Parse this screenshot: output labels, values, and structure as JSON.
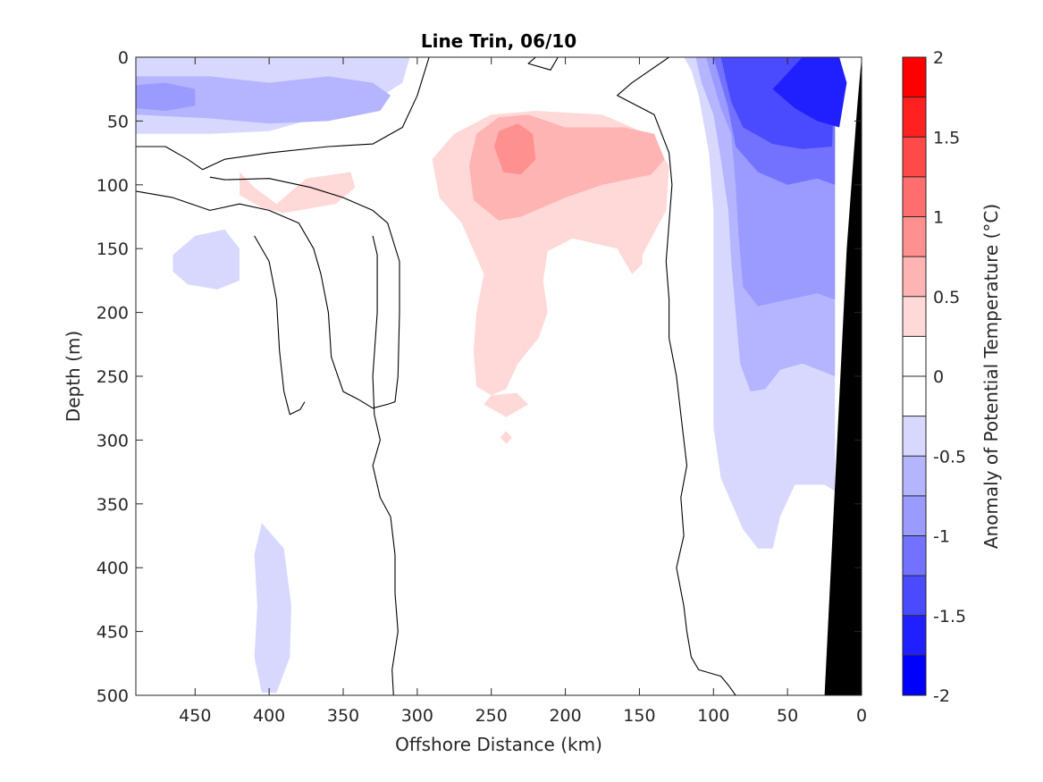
{
  "chart_data": {
    "type": "contour",
    "title": "Line Trin, 06/10",
    "xlabel": "Offshore Distance (km)",
    "ylabel": "Depth (m)",
    "colorbar_label": "Anomaly of Potential Temperature (°C)",
    "xlim": [
      490,
      0
    ],
    "ylim": [
      0,
      500
    ],
    "x_reversed": true,
    "y_reversed": true,
    "x_ticks": [
      450,
      400,
      350,
      300,
      250,
      200,
      150,
      100,
      50,
      0
    ],
    "y_ticks": [
      0,
      50,
      100,
      150,
      200,
      250,
      300,
      350,
      400,
      450,
      500
    ],
    "colorbar_ticks": [
      2,
      1.5,
      1,
      0.5,
      0,
      -0.5,
      -1,
      -1.5,
      -2
    ],
    "colorbar_tick_labels": [
      "2",
      "1.5",
      "1",
      "0.5",
      "0",
      "-0.5",
      "-1",
      "-1.5",
      "-2"
    ],
    "colorbar_range": [
      -2,
      2
    ],
    "contour_step": 0.25,
    "colormap": [
      "#0000ff",
      "#2020ff",
      "#4a4aff",
      "#7272ff",
      "#9a9aff",
      "#b4b4ff",
      "#d8d8ff",
      "#ffffff",
      "#ffffff",
      "#ffd8d8",
      "#ffb4b4",
      "#ff9090",
      "#ff6e6e",
      "#ff4a4a",
      "#ff2020",
      "#ff0000"
    ],
    "seafloor_color": "#000000",
    "zero_contour_color": "#000000",
    "regions": [
      {
        "level": -0.25,
        "color": "#d8d8ff",
        "points": [
          [
            490,
            0
          ],
          [
            305,
            0
          ],
          [
            310,
            20
          ],
          [
            330,
            35
          ],
          [
            360,
            45
          ],
          [
            400,
            58
          ],
          [
            440,
            60
          ],
          [
            490,
            60
          ]
        ]
      },
      {
        "level": -0.5,
        "color": "#b4b4ff",
        "points": [
          [
            490,
            15
          ],
          [
            440,
            15
          ],
          [
            400,
            20
          ],
          [
            360,
            15
          ],
          [
            330,
            20
          ],
          [
            318,
            30
          ],
          [
            325,
            42
          ],
          [
            360,
            50
          ],
          [
            400,
            52
          ],
          [
            440,
            48
          ],
          [
            490,
            45
          ]
        ]
      },
      {
        "level": -0.75,
        "color": "#9a9aff",
        "points": [
          [
            470,
            20
          ],
          [
            450,
            25
          ],
          [
            450,
            38
          ],
          [
            470,
            42
          ],
          [
            490,
            40
          ],
          [
            490,
            22
          ]
        ]
      },
      {
        "level": -0.25,
        "color": "#d8d8ff",
        "points": [
          [
            465,
            155
          ],
          [
            450,
            140
          ],
          [
            430,
            135
          ],
          [
            420,
            150
          ],
          [
            420,
            175
          ],
          [
            435,
            182
          ],
          [
            455,
            178
          ],
          [
            465,
            168
          ]
        ]
      },
      {
        "level": -0.25,
        "color": "#d8d8ff",
        "points": [
          [
            405,
            365
          ],
          [
            390,
            385
          ],
          [
            385,
            430
          ],
          [
            386,
            470
          ],
          [
            395,
            498
          ],
          [
            405,
            498
          ],
          [
            410,
            470
          ],
          [
            408,
            430
          ],
          [
            410,
            390
          ]
        ]
      },
      {
        "level": 0.25,
        "color": "#ffd8d8",
        "points": [
          [
            420,
            90
          ],
          [
            410,
            102
          ],
          [
            395,
            115
          ],
          [
            385,
            105
          ],
          [
            375,
            95
          ],
          [
            345,
            90
          ],
          [
            342,
            102
          ],
          [
            355,
            115
          ],
          [
            370,
            118
          ],
          [
            390,
            122
          ],
          [
            405,
            118
          ],
          [
            420,
            108
          ]
        ]
      },
      {
        "level": 0.25,
        "color": "#ffd8d8",
        "points": [
          [
            290,
            80
          ],
          [
            275,
            60
          ],
          [
            250,
            45
          ],
          [
            220,
            42
          ],
          [
            175,
            45
          ],
          [
            145,
            60
          ],
          [
            130,
            85
          ],
          [
            132,
            120
          ],
          [
            148,
            155
          ],
          [
            148,
            162
          ],
          [
            155,
            170
          ],
          [
            165,
            150
          ],
          [
            195,
            142
          ],
          [
            212,
            152
          ],
          [
            215,
            175
          ],
          [
            212,
            200
          ],
          [
            218,
            220
          ],
          [
            232,
            240
          ],
          [
            240,
            260
          ],
          [
            250,
            265
          ],
          [
            260,
            258
          ],
          [
            262,
            230
          ],
          [
            260,
            200
          ],
          [
            255,
            170
          ],
          [
            270,
            130
          ],
          [
            285,
            110
          ]
        ]
      },
      {
        "level": 0.25,
        "color": "#ffd8d8",
        "points": [
          [
            250,
            265
          ],
          [
            255,
            272
          ],
          [
            240,
            282
          ],
          [
            225,
            272
          ],
          [
            233,
            263
          ]
        ]
      },
      {
        "level": 0.25,
        "color": "#ffd8d8",
        "points": [
          [
            240,
            293
          ],
          [
            236,
            298
          ],
          [
            240,
            303
          ],
          [
            244,
            298
          ]
        ]
      },
      {
        "level": 0.5,
        "color": "#ffb4b4",
        "points": [
          [
            260,
            60
          ],
          [
            245,
            47
          ],
          [
            225,
            45
          ],
          [
            200,
            55
          ],
          [
            160,
            55
          ],
          [
            140,
            60
          ],
          [
            133,
            80
          ],
          [
            142,
            92
          ],
          [
            175,
            100
          ],
          [
            200,
            110
          ],
          [
            230,
            125
          ],
          [
            245,
            128
          ],
          [
            262,
            112
          ],
          [
            265,
            85
          ]
        ]
      },
      {
        "level": 0.75,
        "color": "#ff9090",
        "points": [
          [
            245,
            58
          ],
          [
            232,
            52
          ],
          [
            222,
            60
          ],
          [
            220,
            80
          ],
          [
            230,
            92
          ],
          [
            242,
            90
          ],
          [
            248,
            70
          ]
        ]
      },
      {
        "level": -0.25,
        "color": "#d8d8ff",
        "points": [
          [
            120,
            0
          ],
          [
            115,
            10
          ],
          [
            110,
            30
          ],
          [
            103,
            75
          ],
          [
            100,
            120
          ],
          [
            100,
            180
          ],
          [
            100,
            250
          ],
          [
            100,
            290
          ],
          [
            95,
            330
          ],
          [
            80,
            370
          ],
          [
            70,
            385
          ],
          [
            60,
            385
          ],
          [
            55,
            360
          ],
          [
            45,
            335
          ],
          [
            25,
            335
          ],
          [
            18,
            340
          ],
          [
            18,
            0
          ]
        ]
      },
      {
        "level": -0.5,
        "color": "#b4b4ff",
        "points": [
          [
            112,
            0
          ],
          [
            108,
            20
          ],
          [
            100,
            45
          ],
          [
            95,
            80
          ],
          [
            90,
            120
          ],
          [
            88,
            160
          ],
          [
            85,
            200
          ],
          [
            82,
            240
          ],
          [
            75,
            262
          ],
          [
            65,
            260
          ],
          [
            55,
            245
          ],
          [
            40,
            240
          ],
          [
            18,
            250
          ],
          [
            18,
            0
          ]
        ]
      },
      {
        "level": -0.75,
        "color": "#9a9aff",
        "points": [
          [
            105,
            0
          ],
          [
            100,
            20
          ],
          [
            95,
            40
          ],
          [
            88,
            60
          ],
          [
            85,
            100
          ],
          [
            83,
            140
          ],
          [
            80,
            180
          ],
          [
            70,
            195
          ],
          [
            50,
            190
          ],
          [
            30,
            185
          ],
          [
            18,
            190
          ],
          [
            18,
            0
          ]
        ]
      },
      {
        "level": -1.0,
        "color": "#7272ff",
        "points": [
          [
            100,
            0
          ],
          [
            95,
            20
          ],
          [
            90,
            40
          ],
          [
            85,
            70
          ],
          [
            70,
            90
          ],
          [
            50,
            100
          ],
          [
            30,
            95
          ],
          [
            18,
            100
          ],
          [
            18,
            0
          ]
        ]
      },
      {
        "level": -1.25,
        "color": "#4a4aff",
        "points": [
          [
            95,
            0
          ],
          [
            92,
            15
          ],
          [
            88,
            35
          ],
          [
            80,
            55
          ],
          [
            60,
            68
          ],
          [
            40,
            72
          ],
          [
            20,
            70
          ],
          [
            18,
            0
          ]
        ]
      },
      {
        "level": -1.5,
        "color": "#2020ff",
        "points": [
          [
            40,
            0
          ],
          [
            60,
            25
          ],
          [
            45,
            40
          ],
          [
            30,
            50
          ],
          [
            15,
            55
          ],
          [
            10,
            20
          ],
          [
            15,
            0
          ]
        ]
      }
    ],
    "seafloor": {
      "points": [
        [
          0,
          0
        ],
        [
          0,
          500
        ],
        [
          25,
          500
        ],
        [
          10,
          150
        ],
        [
          3,
          40
        ]
      ]
    },
    "zero_contours": [
      {
        "points": [
          [
            490,
            70
          ],
          [
            470,
            70
          ],
          [
            455,
            80
          ],
          [
            445,
            88
          ],
          [
            430,
            80
          ],
          [
            400,
            75
          ],
          [
            360,
            70
          ],
          [
            330,
            68
          ],
          [
            310,
            55
          ],
          [
            300,
            30
          ],
          [
            292,
            0
          ]
        ]
      },
      {
        "points": [
          [
            490,
            105
          ],
          [
            465,
            110
          ],
          [
            440,
            120
          ],
          [
            420,
            115
          ],
          [
            400,
            120
          ],
          [
            380,
            130
          ],
          [
            370,
            150
          ],
          [
            365,
            170
          ],
          [
            360,
            200
          ],
          [
            358,
            235
          ],
          [
            350,
            262
          ],
          [
            340,
            268
          ],
          [
            330,
            275
          ],
          [
            320,
            272
          ],
          [
            315,
            270
          ],
          [
            313,
            250
          ],
          [
            312,
            200
          ],
          [
            312,
            160
          ],
          [
            320,
            130
          ],
          [
            330,
            120
          ],
          [
            350,
            110
          ],
          [
            372,
            102
          ],
          [
            400,
            95
          ],
          [
            430,
            96
          ],
          [
            440,
            94
          ]
        ]
      },
      {
        "points": [
          [
            205,
            0
          ],
          [
            210,
            10
          ],
          [
            225,
            5
          ],
          [
            220,
            0
          ]
        ]
      },
      {
        "points": [
          [
            410,
            140
          ],
          [
            400,
            160
          ],
          [
            395,
            190
          ],
          [
            393,
            230
          ],
          [
            390,
            262
          ],
          [
            386,
            280
          ],
          [
            379,
            276
          ],
          [
            376,
            270
          ]
        ]
      },
      {
        "points": [
          [
            330,
            140
          ],
          [
            327,
            155
          ],
          [
            327,
            200
          ],
          [
            330,
            250
          ],
          [
            329,
            280
          ],
          [
            325,
            300
          ],
          [
            330,
            320
          ],
          [
            325,
            345
          ],
          [
            318,
            360
          ],
          [
            315,
            390
          ],
          [
            315,
            420
          ],
          [
            313,
            450
          ],
          [
            317,
            480
          ],
          [
            316,
            500
          ]
        ]
      },
      {
        "points": [
          [
            130,
            0
          ],
          [
            155,
            20
          ],
          [
            165,
            30
          ],
          [
            140,
            45
          ],
          [
            130,
            75
          ],
          [
            128,
            100
          ],
          [
            130,
            130
          ],
          [
            132,
            160
          ],
          [
            130,
            190
          ],
          [
            130,
            220
          ],
          [
            125,
            250
          ],
          [
            122,
            280
          ],
          [
            118,
            320
          ],
          [
            122,
            345
          ],
          [
            120,
            375
          ],
          [
            125,
            400
          ],
          [
            120,
            430
          ],
          [
            118,
            450
          ],
          [
            115,
            470
          ],
          [
            110,
            480
          ],
          [
            95,
            485
          ],
          [
            90,
            492
          ],
          [
            85,
            500
          ]
        ]
      }
    ]
  }
}
